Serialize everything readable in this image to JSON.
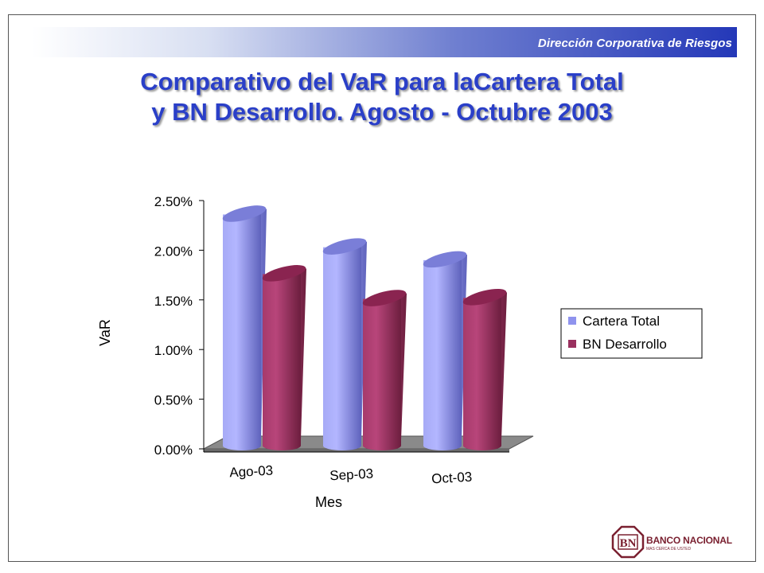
{
  "header": {
    "department": "Dirección Corporativa de Riesgos",
    "title_line1": "Comparativo del VaR para laCartera Total",
    "title_line2": "y BN Desarrollo. Agosto - Octubre 2003"
  },
  "logo": {
    "letters": "BN",
    "name": "BANCO NACIONAL",
    "slogan": "MAS CERCA DE USTED"
  },
  "colors": {
    "title": "#2a3fc8",
    "series1": "#8f93ee",
    "series2": "#99305f"
  },
  "chart_data": {
    "type": "bar",
    "categories": [
      "Ago-03",
      "Sep-03",
      "Oct-03"
    ],
    "series": [
      {
        "name": "Cartera Total",
        "values": [
          2.36,
          2.03,
          1.9
        ]
      },
      {
        "name": "BN Desarrollo",
        "values": [
          1.76,
          1.51,
          1.52
        ]
      }
    ],
    "xlabel": "Mes",
    "ylabel": "VaR",
    "yticks": [
      "0.00%",
      "0.50%",
      "1.00%",
      "1.50%",
      "2.00%",
      "2.50%"
    ],
    "ylim": [
      0,
      2.5
    ],
    "legend_position": "right",
    "style": "3d-cylinder"
  }
}
